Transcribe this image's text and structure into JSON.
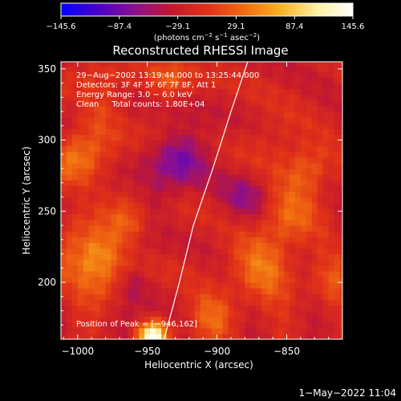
{
  "chart_data": {
    "type": "heatmap",
    "title": "Reconstructed RHESSI Image",
    "xlabel": "Heliocentric X (arcsec)",
    "ylabel": "Heliocentric Y (arcsec)",
    "xlim": [
      -1012,
      -810
    ],
    "ylim": [
      160,
      355
    ],
    "x_ticks": [
      -1000,
      -950,
      -900,
      -850
    ],
    "x_tick_labels": [
      "−1000",
      "−950",
      "−900",
      "−850"
    ],
    "y_ticks": [
      200,
      250,
      300,
      350
    ],
    "y_tick_labels": [
      "200",
      "250",
      "300",
      "350"
    ],
    "grid": false,
    "colorbar": {
      "min": -145.6,
      "max": 145.6,
      "ticks": [
        -145.6,
        -87.4,
        -29.1,
        29.1,
        87.4,
        145.6
      ],
      "tick_labels": [
        "−145.6",
        "−87.4",
        "−29.1",
        "29.1",
        "87.4",
        "145.6"
      ],
      "units_prefix": "(photons cm",
      "units_exp1": "−2",
      "units_mid": " s",
      "units_exp2": "−1",
      "units_mid2": " asec",
      "units_exp3": "−2",
      "units_suffix": ")",
      "colormap": [
        "#0000ff",
        "#4800c8",
        "#8a1090",
        "#c21830",
        "#e03018",
        "#f06a10",
        "#f8b020",
        "#fff0a0",
        "#ffffff"
      ]
    },
    "info": {
      "line1": "29−Aug−2002 13:19:44.000 to 13:25:44.000",
      "line2": "Detectors: 3F 4F 5F 6F 7F 8F, Att 1",
      "line3": "Energy Range: 3.0 − 6.0 keV",
      "line4": "Clean     Total counts: 1.80E+04"
    },
    "peak": {
      "label": "Position of Peak = [−946,162]",
      "x": -946,
      "y": 162
    },
    "limb_curve": [
      [
        -938,
        160
      ],
      [
        -927,
        200
      ],
      [
        -917,
        240
      ],
      [
        -903,
        280
      ],
      [
        -890,
        320
      ],
      [
        -878,
        355
      ]
    ],
    "blobs": [
      {
        "x": -946,
        "y": 162,
        "sigma": 7,
        "amp": 160
      },
      {
        "x": -983,
        "y": 222,
        "sigma": 12,
        "amp": 70
      },
      {
        "x": -1000,
        "y": 205,
        "sigma": 14,
        "amp": 55
      },
      {
        "x": -965,
        "y": 240,
        "sigma": 10,
        "amp": 45
      },
      {
        "x": -870,
        "y": 208,
        "sigma": 16,
        "amp": 55
      },
      {
        "x": -850,
        "y": 245,
        "sigma": 14,
        "amp": 55
      },
      {
        "x": -835,
        "y": 280,
        "sigma": 12,
        "amp": 50
      },
      {
        "x": -905,
        "y": 175,
        "sigma": 12,
        "amp": 45
      },
      {
        "x": -1000,
        "y": 280,
        "sigma": 14,
        "amp": 55
      },
      {
        "x": -985,
        "y": 320,
        "sigma": 12,
        "amp": 45
      },
      {
        "x": -935,
        "y": 340,
        "sigma": 10,
        "amp": 40
      },
      {
        "x": -925,
        "y": 290,
        "sigma": 14,
        "amp": -60
      },
      {
        "x": -945,
        "y": 258,
        "sigma": 10,
        "amp": -30
      },
      {
        "x": -960,
        "y": 200,
        "sigma": 8,
        "amp": -35
      },
      {
        "x": -880,
        "y": 260,
        "sigma": 12,
        "amp": -40
      },
      {
        "x": -820,
        "y": 200,
        "sigma": 12,
        "amp": 35
      },
      {
        "x": -860,
        "y": 300,
        "sigma": 14,
        "amp": 20
      }
    ]
  },
  "footer": {
    "timestamp": "1−May−2022 11:04"
  }
}
